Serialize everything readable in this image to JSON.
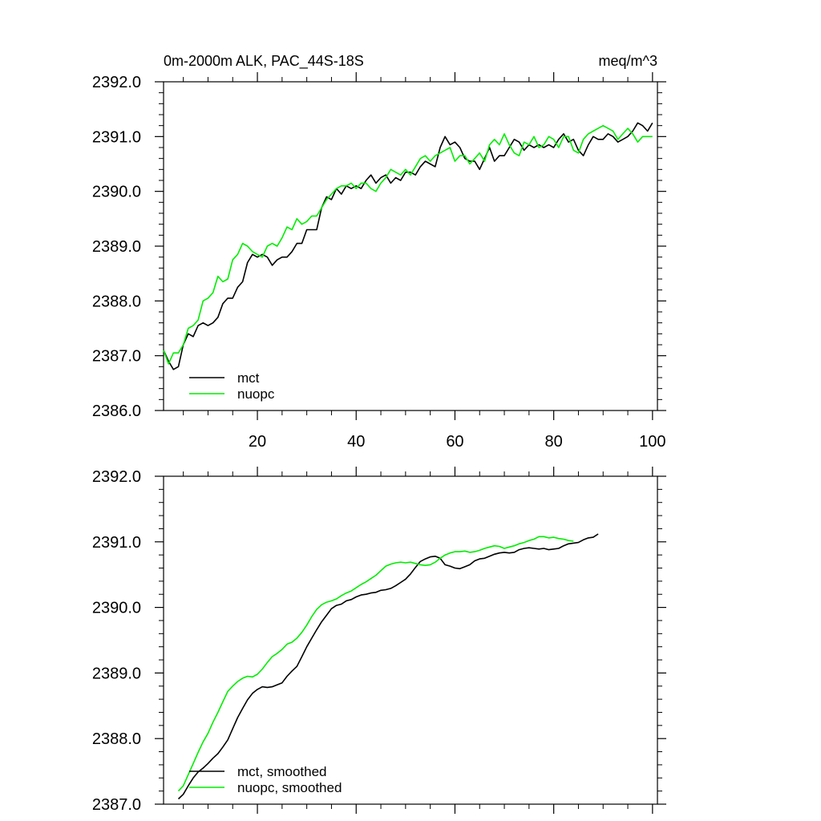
{
  "chart_data": [
    {
      "type": "line",
      "title": "0m-2000m ALK, PAC_44S-18S",
      "units": "meq/m^3",
      "xlabel": "",
      "ylabel": "",
      "xlim": [
        1,
        101
      ],
      "ylim": [
        2386.0,
        2392.0
      ],
      "x_start": 1,
      "xticks": [
        20,
        40,
        60,
        80,
        100
      ],
      "xtick_labels": [
        "20",
        "40",
        "60",
        "80",
        "100"
      ],
      "yticks": [
        2386.0,
        2387.0,
        2388.0,
        2389.0,
        2390.0,
        2391.0,
        2392.0
      ],
      "ytick_labels": [
        "2386.0",
        "2387.0",
        "2388.0",
        "2389.0",
        "2390.0",
        "2391.0",
        "2392.0"
      ],
      "legend_position": "bottom-left",
      "series": [
        {
          "name": "mct",
          "color": "#000000",
          "values": [
            2387.1,
            2386.9,
            2386.75,
            2386.8,
            2387.2,
            2387.4,
            2387.35,
            2387.55,
            2387.6,
            2387.55,
            2387.6,
            2387.7,
            2387.95,
            2388.05,
            2388.05,
            2388.25,
            2388.35,
            2388.7,
            2388.85,
            2388.8,
            2388.85,
            2388.8,
            2388.65,
            2388.75,
            2388.8,
            2388.8,
            2388.9,
            2389.05,
            2389.05,
            2389.3,
            2389.3,
            2389.3,
            2389.7,
            2389.9,
            2389.85,
            2390.05,
            2389.95,
            2390.1,
            2390.05,
            2390.1,
            2390.05,
            2390.2,
            2390.3,
            2390.15,
            2390.25,
            2390.3,
            2390.15,
            2390.25,
            2390.2,
            2390.35,
            2390.35,
            2390.3,
            2390.45,
            2390.55,
            2390.5,
            2390.45,
            2390.8,
            2391.0,
            2390.85,
            2390.9,
            2390.8,
            2390.6,
            2390.55,
            2390.55,
            2390.4,
            2390.6,
            2390.8,
            2390.55,
            2390.65,
            2390.65,
            2390.8,
            2390.95,
            2390.9,
            2390.75,
            2390.85,
            2390.8,
            2390.85,
            2390.8,
            2390.85,
            2390.8,
            2390.95,
            2391.05,
            2390.9,
            2390.95,
            2390.75,
            2390.65,
            2390.85,
            2391.0,
            2390.95,
            2390.95,
            2391.05,
            2391.0,
            2390.9,
            2390.95,
            2391.0,
            2391.1,
            2391.25,
            2391.2,
            2391.1,
            2391.25
          ]
        },
        {
          "name": "nuopc",
          "color": "#00ee00",
          "values": [
            2387.1,
            2386.85,
            2387.05,
            2387.05,
            2387.2,
            2387.5,
            2387.55,
            2387.65,
            2388.0,
            2388.05,
            2388.15,
            2388.45,
            2388.35,
            2388.4,
            2388.75,
            2388.85,
            2389.05,
            2389.0,
            2388.9,
            2388.85,
            2388.8,
            2389.0,
            2389.05,
            2389.0,
            2389.15,
            2389.35,
            2389.3,
            2389.5,
            2389.4,
            2389.45,
            2389.55,
            2389.55,
            2389.7,
            2389.85,
            2389.95,
            2390.05,
            2390.1,
            2390.1,
            2390.15,
            2390.05,
            2390.15,
            2390.15,
            2390.05,
            2390.0,
            2390.15,
            2390.25,
            2390.4,
            2390.35,
            2390.3,
            2390.4,
            2390.3,
            2390.45,
            2390.6,
            2390.65,
            2390.55,
            2390.65,
            2390.7,
            2390.75,
            2390.8,
            2390.55,
            2390.65,
            2390.65,
            2390.5,
            2390.6,
            2390.7,
            2390.55,
            2390.85,
            2390.95,
            2390.85,
            2391.05,
            2390.85,
            2390.7,
            2390.65,
            2390.9,
            2390.85,
            2391.0,
            2390.8,
            2390.85,
            2391.0,
            2390.95,
            2390.8,
            2391.0,
            2391.0,
            2390.75,
            2390.7,
            2390.95,
            2391.05,
            2391.1,
            2391.15,
            2391.2,
            2391.15,
            2391.1,
            2390.95,
            2391.05,
            2391.15,
            2391.05,
            2390.9,
            2391.0,
            2391.0,
            2391.0
          ]
        }
      ]
    },
    {
      "type": "line",
      "title": "",
      "xlabel": "",
      "ylabel": "",
      "xlim": [
        1,
        101
      ],
      "ylim": [
        2387.0,
        2392.0
      ],
      "x_start": 4,
      "xticks": [
        20,
        40,
        60,
        80,
        100
      ],
      "xtick_labels": [],
      "yticks": [
        2387.0,
        2388.0,
        2389.0,
        2390.0,
        2391.0,
        2392.0
      ],
      "ytick_labels": [
        "2387.0",
        "2388.0",
        "2389.0",
        "2390.0",
        "2391.0",
        "2392.0"
      ],
      "legend_position": "bottom-left",
      "series": [
        {
          "name": "mct, smoothed",
          "color": "#000000",
          "values": [
            2387.08,
            2387.15,
            2387.28,
            2387.4,
            2387.49,
            2387.55,
            2387.62,
            2387.7,
            2387.77,
            2387.87,
            2387.98,
            2388.15,
            2388.32,
            2388.46,
            2388.59,
            2388.69,
            2388.75,
            2388.79,
            2388.78,
            2388.79,
            2388.82,
            2388.85,
            2388.95,
            2389.03,
            2389.1,
            2389.25,
            2389.4,
            2389.53,
            2389.66,
            2389.78,
            2389.88,
            2389.98,
            2390.03,
            2390.05,
            2390.1,
            2390.12,
            2390.16,
            2390.19,
            2390.2,
            2390.22,
            2390.23,
            2390.26,
            2390.27,
            2390.29,
            2390.33,
            2390.38,
            2390.43,
            2390.51,
            2390.61,
            2390.7,
            2390.74,
            2390.77,
            2390.78,
            2390.75,
            2390.65,
            2390.63,
            2390.6,
            2390.59,
            2390.62,
            2390.65,
            2390.71,
            2390.74,
            2390.75,
            2390.78,
            2390.81,
            2390.83,
            2390.84,
            2390.83,
            2390.84,
            2390.88,
            2390.9,
            2390.91,
            2390.9,
            2390.89,
            2390.9,
            2390.88,
            2390.89,
            2390.9,
            2390.94,
            2390.97,
            2390.98,
            2390.99,
            2391.03,
            2391.06,
            2391.07,
            2391.12
          ]
        },
        {
          "name": "nuopc, smoothed",
          "color": "#00ee00",
          "values": [
            2387.2,
            2387.28,
            2387.45,
            2387.62,
            2387.79,
            2387.95,
            2388.08,
            2388.25,
            2388.4,
            2388.56,
            2388.72,
            2388.8,
            2388.87,
            2388.92,
            2388.95,
            2388.94,
            2388.98,
            2389.06,
            2389.16,
            2389.25,
            2389.3,
            2389.36,
            2389.44,
            2389.47,
            2389.53,
            2389.62,
            2389.73,
            2389.86,
            2389.97,
            2390.04,
            2390.08,
            2390.1,
            2390.13,
            2390.18,
            2390.22,
            2390.25,
            2390.3,
            2390.35,
            2390.39,
            2390.44,
            2390.49,
            2390.56,
            2390.63,
            2390.66,
            2390.68,
            2390.69,
            2390.68,
            2390.69,
            2390.67,
            2390.65,
            2390.64,
            2390.65,
            2390.69,
            2390.75,
            2390.8,
            2390.83,
            2390.85,
            2390.85,
            2390.86,
            2390.84,
            2390.85,
            2390.87,
            2390.9,
            2390.92,
            2390.94,
            2390.93,
            2390.9,
            2390.92,
            2390.94,
            2390.97,
            2390.99,
            2391.02,
            2391.04,
            2391.08,
            2391.08,
            2391.06,
            2391.07,
            2391.05,
            2391.04,
            2391.02,
            2391.01
          ]
        }
      ]
    }
  ]
}
